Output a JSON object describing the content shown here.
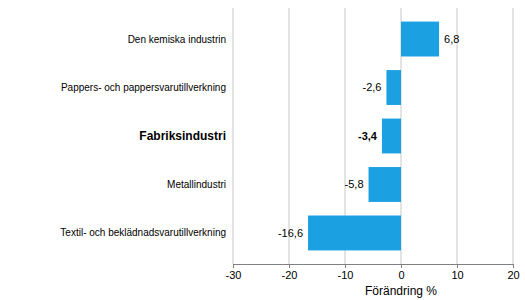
{
  "chart_data": {
    "type": "bar",
    "orientation": "horizontal",
    "xlabel": "Förändring %",
    "categories": [
      "Den kemiska industrin",
      "Pappers- och pappersvarutillverkning",
      "Fabriksindustri",
      "Metallindustri",
      "Textil- och beklädnadsvarutillverkning"
    ],
    "values": [
      6.8,
      -2.6,
      -3.4,
      -5.8,
      -16.6
    ],
    "value_labels": [
      "6,8",
      "-2,6",
      "-3,4",
      "-5,8",
      "-16,6"
    ],
    "color": "#1ba1e2",
    "xlim": [
      -30,
      20
    ],
    "xticks": [
      -30,
      -20,
      -10,
      0,
      10,
      20
    ],
    "grid": true,
    "data_labels": true
  }
}
